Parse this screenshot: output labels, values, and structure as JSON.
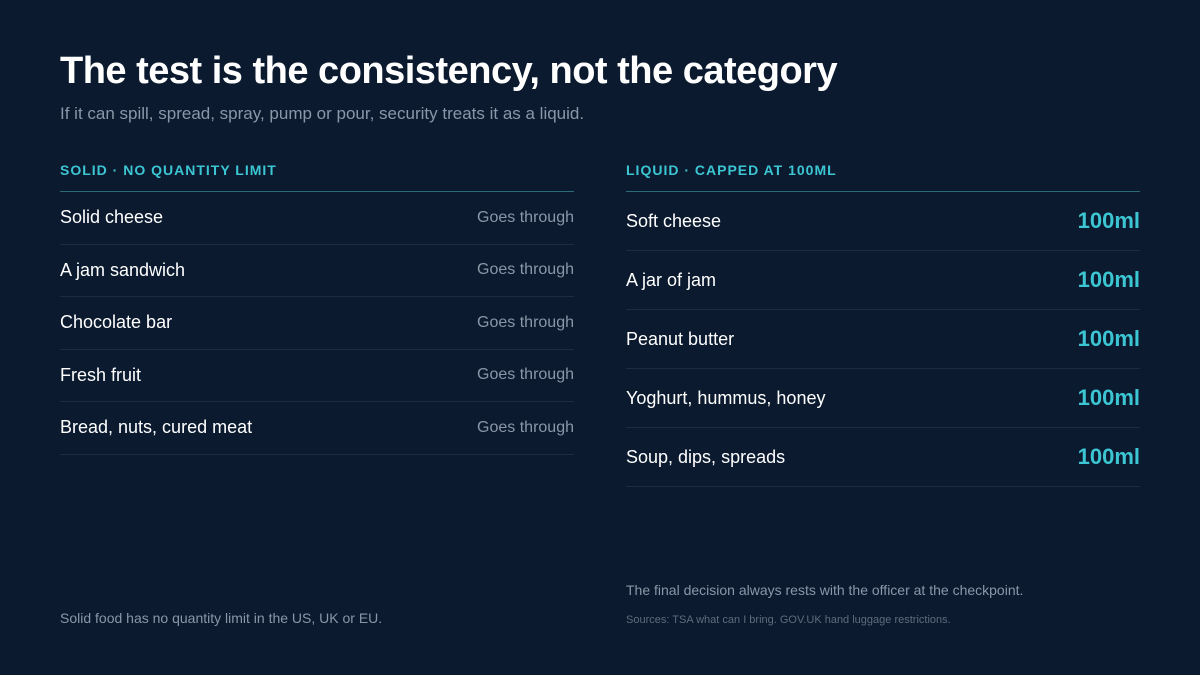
{
  "header": {
    "title": "The test is the consistency, not the category",
    "subtitle": "If it can spill, spread, spray, pump or pour, security treats it as a liquid."
  },
  "solid": {
    "heading": "SOLID · NO QUANTITY LIMIT",
    "items": [
      {
        "name": "Solid cheese",
        "status": "Goes through"
      },
      {
        "name": "A jam sandwich",
        "status": "Goes through"
      },
      {
        "name": "Chocolate bar",
        "status": "Goes through"
      },
      {
        "name": "Fresh fruit",
        "status": "Goes through"
      },
      {
        "name": "Bread, nuts, cured meat",
        "status": "Goes through"
      }
    ],
    "footnote": "Solid food has no quantity limit in the US, UK or EU."
  },
  "liquid": {
    "heading": "LIQUID · CAPPED AT 100ML",
    "items": [
      {
        "name": "Soft cheese",
        "limit": "100ml"
      },
      {
        "name": "A jar of jam",
        "limit": "100ml"
      },
      {
        "name": "Peanut butter",
        "limit": "100ml"
      },
      {
        "name": "Yoghurt, hummus, honey",
        "limit": "100ml"
      },
      {
        "name": "Soup, dips, spreads",
        "limit": "100ml"
      }
    ],
    "note": "The final decision always rests with the officer at the checkpoint.",
    "sources": "Sources: TSA what can I bring. GOV.UK hand luggage restrictions."
  },
  "colors": {
    "background": "#0b1a2f",
    "accent": "#3cc6d3",
    "muted": "#8b97a8"
  }
}
